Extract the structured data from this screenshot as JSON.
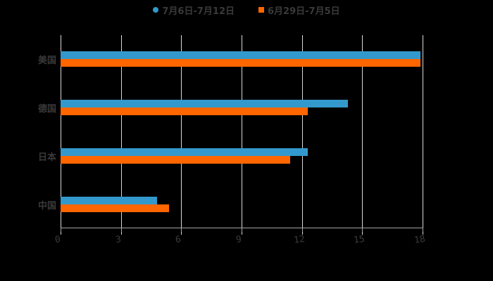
{
  "chart_data": {
    "type": "bar",
    "orientation": "horizontal",
    "title": "",
    "xlabel": "",
    "ylabel": "",
    "categories": [
      "美国",
      "德国",
      "日本",
      "中国"
    ],
    "series": [
      {
        "name": "7月6日-7月12日",
        "color": "#3399cc",
        "values": [
          17.9,
          14.3,
          12.3,
          4.8
        ]
      },
      {
        "name": "6月29日-7月5日",
        "color": "#ff6600",
        "values": [
          17.9,
          12.3,
          11.4,
          5.4
        ]
      }
    ],
    "xlim": [
      0,
      18
    ],
    "xticks": [
      "0",
      "3",
      "6",
      "9",
      "12",
      "15",
      "18"
    ],
    "grid": true,
    "legend_position": "top"
  },
  "legend": {
    "items": [
      {
        "label": "7月6日-7月12日",
        "color": "#3399cc",
        "marker": "circle"
      },
      {
        "label": "6月29日-7月5日",
        "color": "#ff6600",
        "marker": "square"
      }
    ]
  }
}
